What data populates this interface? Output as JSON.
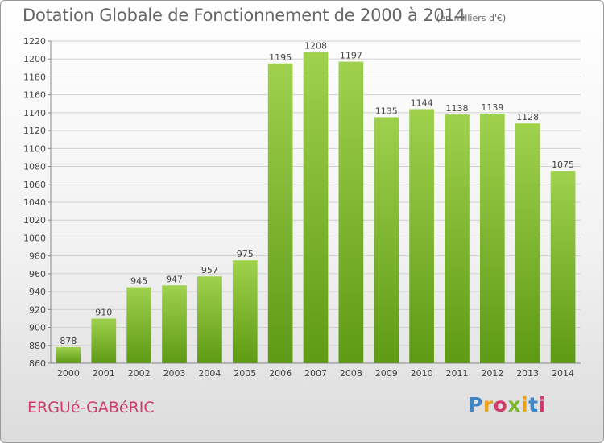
{
  "header": {
    "title": "Dotation Globale de Fonctionnement de 2000 à 2014",
    "unit_note": "(en milliers d'€)"
  },
  "footer": {
    "commune": "ERGUé-GABéRIC",
    "logo_text": "Proxiti"
  },
  "colors": {
    "bar_light": "#9fd14d",
    "bar_dark": "#5e9a14",
    "grid": "#d0d0d0",
    "axis_text": "#444444",
    "commune_text": "#d13b6a"
  },
  "chart_data": {
    "type": "bar",
    "title": "Dotation Globale de Fonctionnement de 2000 à 2014",
    "subtitle": "(en milliers d'€)",
    "xlabel": "",
    "ylabel": "",
    "categories": [
      "2000",
      "2001",
      "2002",
      "2003",
      "2004",
      "2005",
      "2006",
      "2007",
      "2008",
      "2009",
      "2010",
      "2011",
      "2012",
      "2013",
      "2014"
    ],
    "values": [
      878,
      910,
      945,
      947,
      957,
      975,
      1195,
      1208,
      1197,
      1135,
      1144,
      1138,
      1139,
      1128,
      1075
    ],
    "ylim": [
      860,
      1220
    ],
    "yticks": [
      860,
      880,
      900,
      920,
      940,
      960,
      980,
      1000,
      1020,
      1040,
      1060,
      1080,
      1100,
      1120,
      1140,
      1160,
      1180,
      1200,
      1220
    ],
    "grid": true,
    "legend": "none"
  }
}
